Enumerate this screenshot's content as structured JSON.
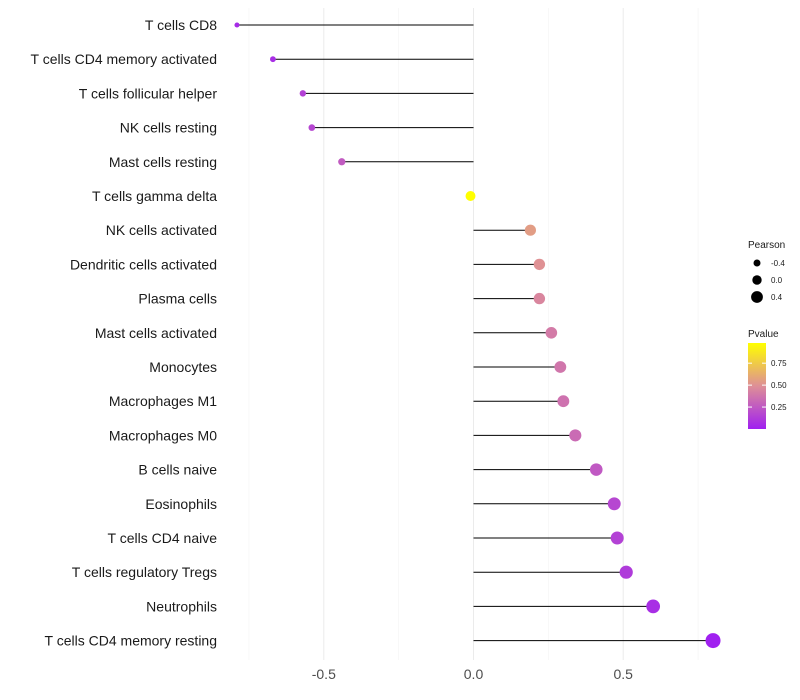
{
  "chart_data": {
    "type": "lollipop",
    "title": "",
    "xlabel": "",
    "ylabel": "",
    "xlim": [
      -0.82,
      0.85
    ],
    "x_ticks": [
      -0.5,
      0.0,
      0.5
    ],
    "x_tick_labels": [
      "-0.5",
      "0.0",
      "0.5"
    ],
    "x_minor_ticks": [
      -0.75,
      -0.25,
      0.25,
      0.75
    ],
    "grid": true,
    "stem_color": "#000000",
    "categories": [
      "T cells CD8",
      "T cells CD4 memory activated",
      "T cells follicular helper",
      "NK cells resting",
      "Mast cells resting",
      "T cells gamma delta",
      "NK cells activated",
      "Dendritic cells activated",
      "Plasma cells",
      "Mast cells activated",
      "Monocytes",
      "Macrophages M1",
      "Macrophages M0",
      "B cells naive",
      "Eosinophils",
      "T cells CD4 naive",
      "T cells regulatory  Tregs",
      "Neutrophils",
      "T cells CD4 memory resting"
    ],
    "values": [
      -0.79,
      -0.67,
      -0.57,
      -0.54,
      -0.44,
      -0.01,
      0.19,
      0.22,
      0.22,
      0.26,
      0.29,
      0.3,
      0.34,
      0.41,
      0.47,
      0.48,
      0.51,
      0.6,
      0.8
    ],
    "pvalues": [
      0.05,
      0.06,
      0.15,
      0.17,
      0.26,
      0.98,
      0.55,
      0.5,
      0.45,
      0.4,
      0.38,
      0.36,
      0.33,
      0.25,
      0.17,
      0.15,
      0.12,
      0.06,
      0.0
    ],
    "legend": {
      "position": "right",
      "size": {
        "title": "Pearson",
        "breaks": [
          -0.4,
          0.0,
          0.4
        ],
        "labels": [
          "-0.4",
          "0.0",
          "0.4"
        ]
      },
      "color": {
        "title": "Pvalue",
        "range": [
          0.0,
          0.98
        ],
        "breaks": [
          0.25,
          0.5,
          0.75
        ],
        "labels": [
          "0.25",
          "0.50",
          "0.75"
        ],
        "low_color": "#a020f0",
        "mid_color": "#de8f97",
        "high_color": "#ffff00"
      }
    }
  }
}
